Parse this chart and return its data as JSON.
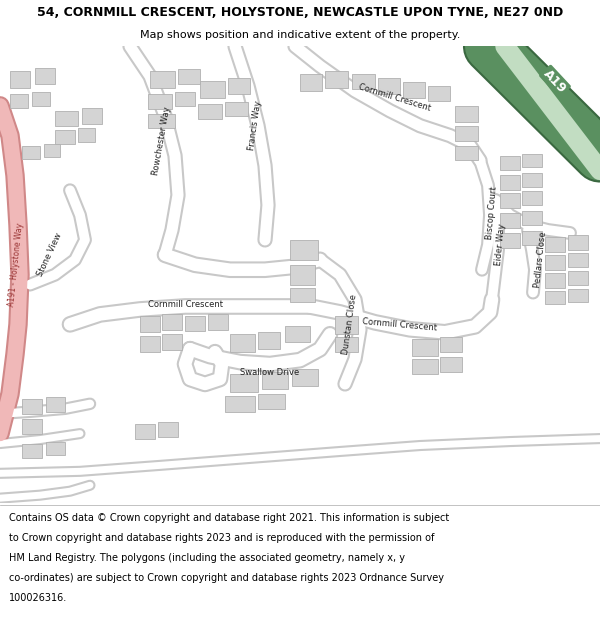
{
  "title_line1": "54, CORNMILL CRESCENT, HOLYSTONE, NEWCASTLE UPON TYNE, NE27 0ND",
  "title_line2": "Map shows position and indicative extent of the property.",
  "footer_line1": "Contains OS data © Crown copyright and database right 2021. This information is subject",
  "footer_line2": "to Crown copyright and database rights 2023 and is reproduced with the permission of",
  "footer_line3": "HM Land Registry. The polygons (including the associated geometry, namely x, y",
  "footer_line4": "co-ordinates) are subject to Crown copyright and database rights 2023 Ordnance Survey",
  "footer_line5": "100026316.",
  "map_bg": "#f2f0ed",
  "road_color": "#ffffff",
  "road_outline": "#c8c8c8",
  "building_color": "#d4d4d4",
  "building_outline": "#b0b0b0"
}
